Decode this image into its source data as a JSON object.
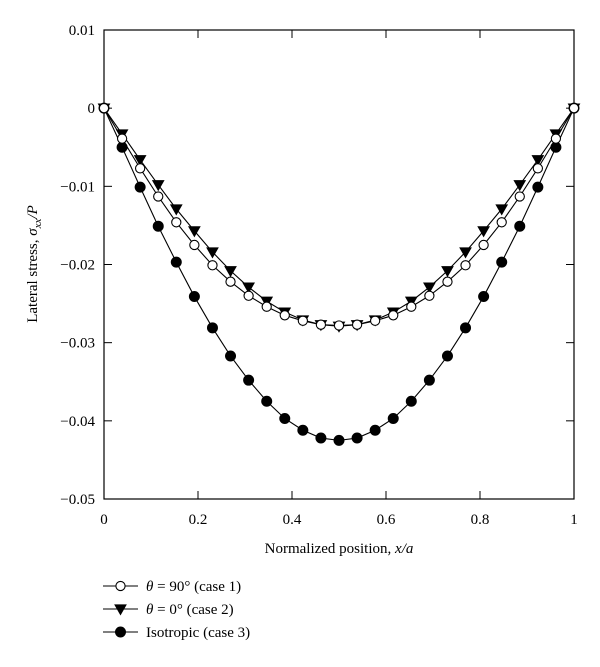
{
  "chart_data": {
    "type": "line",
    "title": "",
    "xlabel": "Normalized position, ",
    "xlabel_var": "x/a",
    "ylabel": "Lateral stress, ",
    "ylabel_sym": "σ",
    "ylabel_sub": "xx",
    "ylabel_suffix": "/P",
    "xlim": [
      0,
      1
    ],
    "ylim": [
      -0.05,
      0.01
    ],
    "xticks": [
      0,
      0.2,
      0.4,
      0.6,
      0.8,
      1
    ],
    "xtick_labels": [
      "0",
      "0.2",
      "0.4",
      "0.6",
      "0.8",
      "1"
    ],
    "yticks": [
      0.01,
      0,
      -0.01,
      -0.02,
      -0.03,
      -0.04,
      -0.05
    ],
    "ytick_labels": [
      "0.01",
      "0",
      "−0.01",
      "−0.02",
      "−0.03",
      "−0.04",
      "−0.05"
    ],
    "grid": false,
    "legend_position": "below-left",
    "x": [
      0,
      0.0385,
      0.0769,
      0.1154,
      0.1538,
      0.1923,
      0.2308,
      0.2692,
      0.3077,
      0.3462,
      0.3846,
      0.4231,
      0.4615,
      0.5,
      0.5385,
      0.5769,
      0.6154,
      0.6538,
      0.6923,
      0.7308,
      0.7692,
      0.8077,
      0.8462,
      0.8846,
      0.9231,
      0.9615,
      1
    ],
    "series": [
      {
        "name": "θ = 90° (case 1)",
        "legend_sym": "θ",
        "legend_rest": " = 90° (case 1)",
        "marker": "open-circle",
        "values": [
          0,
          -0.0039,
          -0.0077,
          -0.0113,
          -0.0146,
          -0.0175,
          -0.0201,
          -0.0222,
          -0.024,
          -0.0254,
          -0.0265,
          -0.0272,
          -0.0277,
          -0.0278,
          -0.0277,
          -0.0272,
          -0.0265,
          -0.0254,
          -0.024,
          -0.0222,
          -0.0201,
          -0.0175,
          -0.0146,
          -0.0113,
          -0.0077,
          -0.0039,
          0
        ]
      },
      {
        "name": "θ = 0° (case 2)",
        "legend_sym": "θ",
        "legend_rest": " = 0° (case 2)",
        "marker": "filled-triangle-down",
        "values": [
          0,
          -0.0033,
          -0.0066,
          -0.0098,
          -0.0129,
          -0.0157,
          -0.0184,
          -0.0208,
          -0.0229,
          -0.0247,
          -0.0261,
          -0.0271,
          -0.0277,
          -0.0279,
          -0.0277,
          -0.0271,
          -0.0261,
          -0.0247,
          -0.0229,
          -0.0208,
          -0.0184,
          -0.0157,
          -0.0129,
          -0.0098,
          -0.0066,
          -0.0033,
          0
        ]
      },
      {
        "name": "Isotropic (case 3)",
        "legend_sym": "",
        "legend_rest": "Isotropic (case 3)",
        "marker": "filled-circle",
        "values": [
          0,
          -0.005,
          -0.0101,
          -0.0151,
          -0.0197,
          -0.0241,
          -0.0281,
          -0.0317,
          -0.0348,
          -0.0375,
          -0.0397,
          -0.0412,
          -0.0422,
          -0.0425,
          -0.0422,
          -0.0412,
          -0.0397,
          -0.0375,
          -0.0348,
          -0.0317,
          -0.0281,
          -0.0241,
          -0.0197,
          -0.0151,
          -0.0101,
          -0.005,
          0
        ]
      }
    ]
  }
}
